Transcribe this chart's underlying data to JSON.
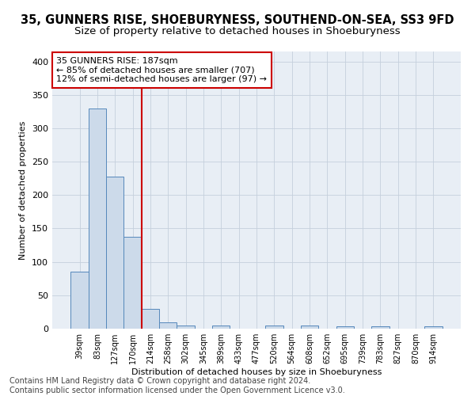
{
  "title": "35, GUNNERS RISE, SHOEBURYNESS, SOUTHEND-ON-SEA, SS3 9FD",
  "subtitle": "Size of property relative to detached houses in Shoeburyness",
  "xlabel": "Distribution of detached houses by size in Shoeburyness",
  "ylabel": "Number of detached properties",
  "categories": [
    "39sqm",
    "83sqm",
    "127sqm",
    "170sqm",
    "214sqm",
    "258sqm",
    "302sqm",
    "345sqm",
    "389sqm",
    "433sqm",
    "477sqm",
    "520sqm",
    "564sqm",
    "608sqm",
    "652sqm",
    "695sqm",
    "739sqm",
    "783sqm",
    "827sqm",
    "870sqm",
    "914sqm"
  ],
  "values": [
    85,
    330,
    228,
    137,
    30,
    10,
    5,
    0,
    5,
    0,
    0,
    5,
    0,
    5,
    0,
    3,
    0,
    3,
    0,
    0,
    3
  ],
  "bar_color": "#ccdaea",
  "bar_edge_color": "#5588bb",
  "ylim": [
    0,
    415
  ],
  "yticks": [
    0,
    50,
    100,
    150,
    200,
    250,
    300,
    350,
    400
  ],
  "property_line_x": 3.5,
  "property_line_color": "#cc0000",
  "annotation_line1": "35 GUNNERS RISE: 187sqm",
  "annotation_line2": "← 85% of detached houses are smaller (707)",
  "annotation_line3": "12% of semi-detached houses are larger (97) →",
  "annotation_box_color": "#ffffff",
  "annotation_box_edge": "#cc0000",
  "footer": "Contains HM Land Registry data © Crown copyright and database right 2024.\nContains public sector information licensed under the Open Government Licence v3.0.",
  "title_fontsize": 10.5,
  "subtitle_fontsize": 9.5,
  "annotation_fontsize": 8,
  "footer_fontsize": 7,
  "background_color": "#e8eef5"
}
